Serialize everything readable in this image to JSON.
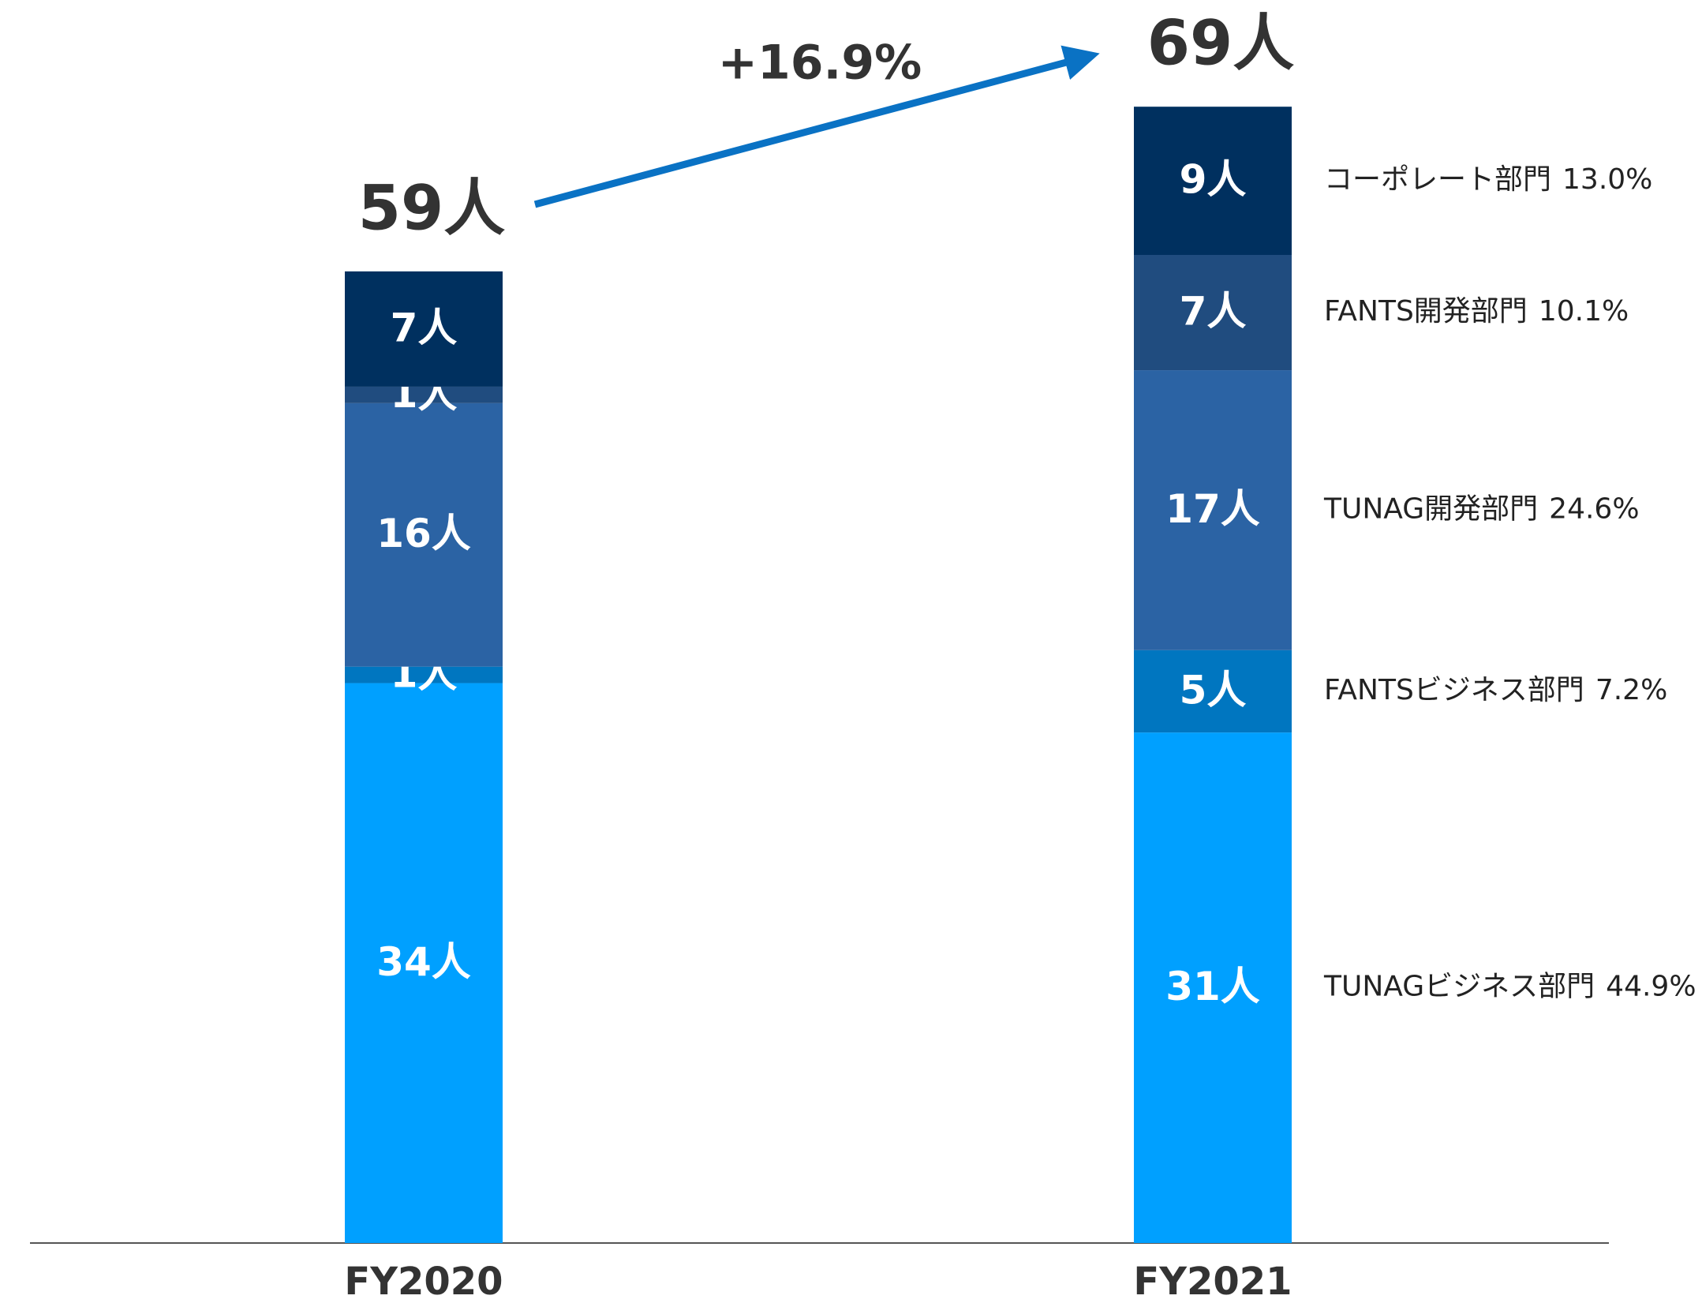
{
  "chart_data": {
    "type": "stacked_bar",
    "categories": [
      "FY2020",
      "FY2021"
    ],
    "series": [
      {
        "name": "TUNAGビジネス部門",
        "color": "#00a0ff",
        "values": [
          34,
          31
        ],
        "value_labels": [
          "34人",
          "31人"
        ],
        "share": 44.9,
        "share_label": "44.9%"
      },
      {
        "name": "FANTSビジネス部門",
        "color": "#0076c0",
        "values": [
          1,
          5
        ],
        "value_labels": [
          "1人",
          "5人"
        ],
        "share": 7.2,
        "share_label": "7.2%"
      },
      {
        "name": "TUNAG開発部門",
        "color": "#2b63a4",
        "values": [
          16,
          17
        ],
        "value_labels": [
          "16人",
          "17人"
        ],
        "share": 24.6,
        "share_label": "24.6%"
      },
      {
        "name": "FANTS開発部門",
        "color": "#204c7f",
        "values": [
          1,
          7
        ],
        "value_labels": [
          "1人",
          "7人"
        ],
        "share": 10.1,
        "share_label": "10.1%"
      },
      {
        "name": "コーポレート部門",
        "color": "#00305f",
        "values": [
          7,
          9
        ],
        "value_labels": [
          "7人",
          "9人"
        ],
        "share": 13.0,
        "share_label": "13.0%"
      }
    ],
    "totals": {
      "values": [
        59,
        69
      ],
      "value_labels": [
        "59人",
        "69人"
      ]
    },
    "growth": {
      "value": 16.9,
      "label": "+16.9%"
    },
    "ylim": [
      0,
      75
    ]
  }
}
